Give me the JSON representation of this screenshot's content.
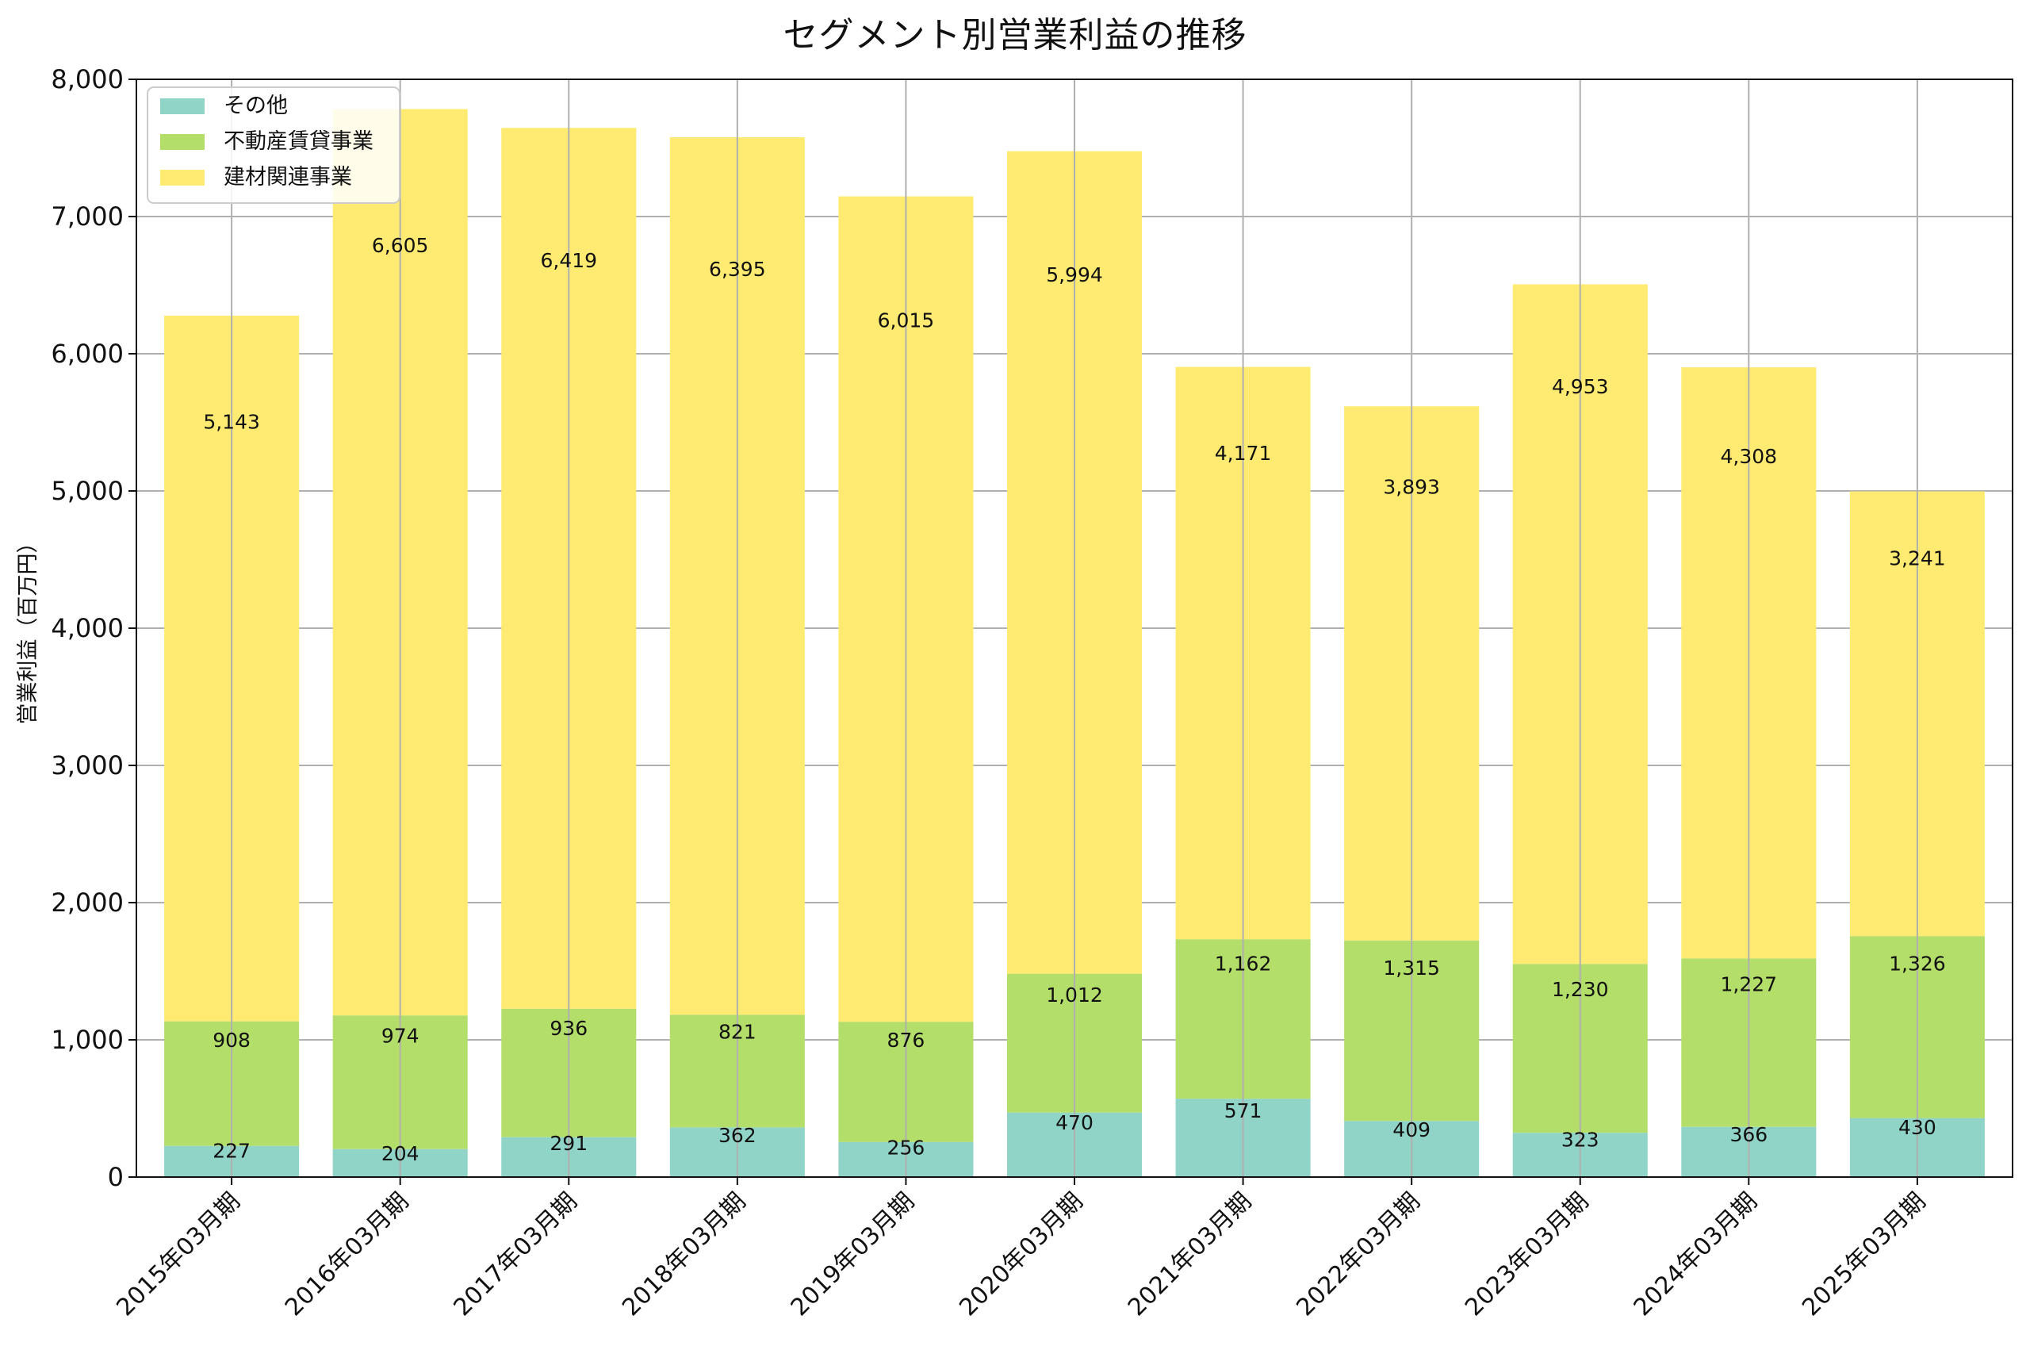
{
  "chart_data": {
    "type": "bar",
    "stacked": true,
    "title": "セグメント別営業利益の推移",
    "xlabel": "",
    "ylabel": "営業利益（百万円）",
    "ylim": [
      0,
      8000
    ],
    "yticks": [
      0,
      1000,
      2000,
      3000,
      4000,
      5000,
      6000,
      7000,
      8000
    ],
    "ytick_labels": [
      "0",
      "1,000",
      "2,000",
      "3,000",
      "4,000",
      "5,000",
      "6,000",
      "7,000",
      "8,000"
    ],
    "grid": true,
    "legend_position": "top-left",
    "categories": [
      "2015年03月期",
      "2016年03月期",
      "2017年03月期",
      "2018年03月期",
      "2019年03月期",
      "2020年03月期",
      "2021年03月期",
      "2022年03月期",
      "2023年03月期",
      "2024年03月期",
      "2025年03月期"
    ],
    "series": [
      {
        "name": "その他",
        "color": "#8fd4c7",
        "values": [
          227,
          204,
          291,
          362,
          256,
          470,
          571,
          409,
          323,
          366,
          430
        ],
        "labels": [
          "227",
          "204",
          "291",
          "362",
          "256",
          "470",
          "571",
          "409",
          "323",
          "366",
          "430"
        ]
      },
      {
        "name": "不動産賃貸事業",
        "color": "#b4de6a",
        "values": [
          908,
          974,
          936,
          821,
          876,
          1012,
          1162,
          1315,
          1230,
          1227,
          1326
        ],
        "labels": [
          "908",
          "974",
          "936",
          "821",
          "876",
          "1,012",
          "1,162",
          "1,315",
          "1,230",
          "1,227",
          "1,326"
        ]
      },
      {
        "name": "建材関連事業",
        "color": "#ffea72",
        "values": [
          5143,
          6605,
          6419,
          6395,
          6015,
          5994,
          4171,
          3893,
          4953,
          4308,
          3241
        ],
        "labels": [
          "5,143",
          "6,605",
          "6,419",
          "6,395",
          "6,015",
          "5,994",
          "4,171",
          "3,893",
          "4,953",
          "4,308",
          "3,241"
        ]
      }
    ]
  }
}
